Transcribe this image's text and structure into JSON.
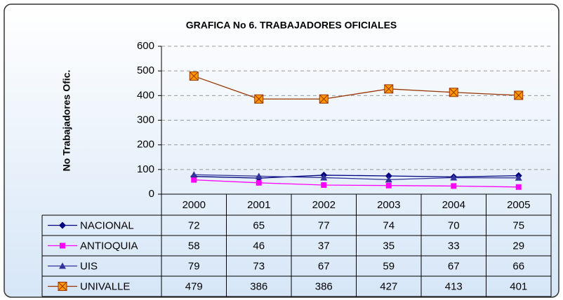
{
  "chart_data": {
    "type": "line",
    "title": "GRAFICA No 6. TRABAJADORES OFICIALES",
    "y_label": "No Trabajadores Ofic.",
    "categories": [
      "2000",
      "2001",
      "2002",
      "2003",
      "2004",
      "2005"
    ],
    "series": [
      {
        "name": "NACIONAL",
        "color": "#000080",
        "marker": "diamond",
        "values": [
          72,
          65,
          77,
          74,
          70,
          75
        ]
      },
      {
        "name": "ANTIOQUIA",
        "color": "#ff00ff",
        "marker": "square",
        "values": [
          58,
          46,
          37,
          35,
          33,
          29
        ]
      },
      {
        "name": "UIS",
        "color": "#333399",
        "marker": "triangle",
        "values": [
          79,
          73,
          67,
          59,
          67,
          66
        ]
      },
      {
        "name": "UNIVALLE",
        "color": "#993300",
        "marker": "xsquare",
        "values": [
          479,
          386,
          386,
          427,
          413,
          401
        ]
      }
    ],
    "ylim": [
      0,
      600
    ],
    "yticks": [
      0,
      100,
      200,
      300,
      400,
      500,
      600
    ],
    "grid": true
  }
}
